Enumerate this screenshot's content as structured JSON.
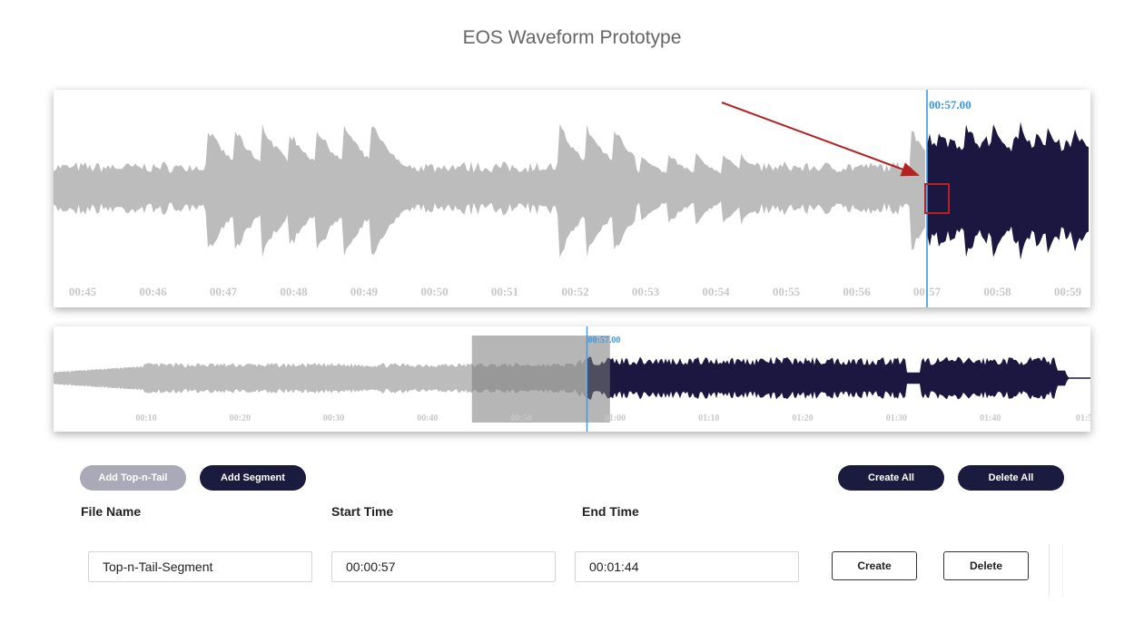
{
  "page": {
    "title": "EOS Waveform Prototype"
  },
  "colors": {
    "played": "#1b1740",
    "unplayed": "#bcbcbc",
    "cursor": "#3b97ea",
    "annotation": "#b42222",
    "button_dark": "#1b1b40",
    "button_disabled": "#a9a9b8"
  },
  "main_waveform": {
    "cursor_label": "00:57.00",
    "cursor_time_s": 57.0,
    "view_start_s": 44.73,
    "view_end_s": 59.45,
    "ticks": [
      "00:45",
      "00:46",
      "00:47",
      "00:48",
      "00:49",
      "00:50",
      "00:51",
      "00:52",
      "00:53",
      "00:54",
      "00:55",
      "00:56",
      "00:57",
      "00:58",
      "00:59"
    ]
  },
  "overview_waveform": {
    "cursor_label": "00:57.00",
    "cursor_time_s": 57.0,
    "duration_s": 110.5,
    "visible_window": {
      "start_s": 44.73,
      "end_s": 59.45
    },
    "ticks": [
      "00:10",
      "00:20",
      "00:30",
      "00:40",
      "00:50",
      "01:00",
      "01:10",
      "01:20",
      "01:30",
      "01:40",
      "01:5"
    ]
  },
  "toolbar": {
    "add_top_n_tail": "Add Top-n-Tail",
    "add_segment": "Add Segment",
    "create_all": "Create All",
    "delete_all": "Delete All"
  },
  "table": {
    "headers": {
      "file_name": "File Name",
      "start_time": "Start Time",
      "end_time": "End Time"
    },
    "rows": [
      {
        "file_name": "Top-n-Tail-Segment",
        "start_time": "00:00:57",
        "end_time": "00:01:44",
        "create_label": "Create",
        "delete_label": "Delete"
      }
    ]
  }
}
